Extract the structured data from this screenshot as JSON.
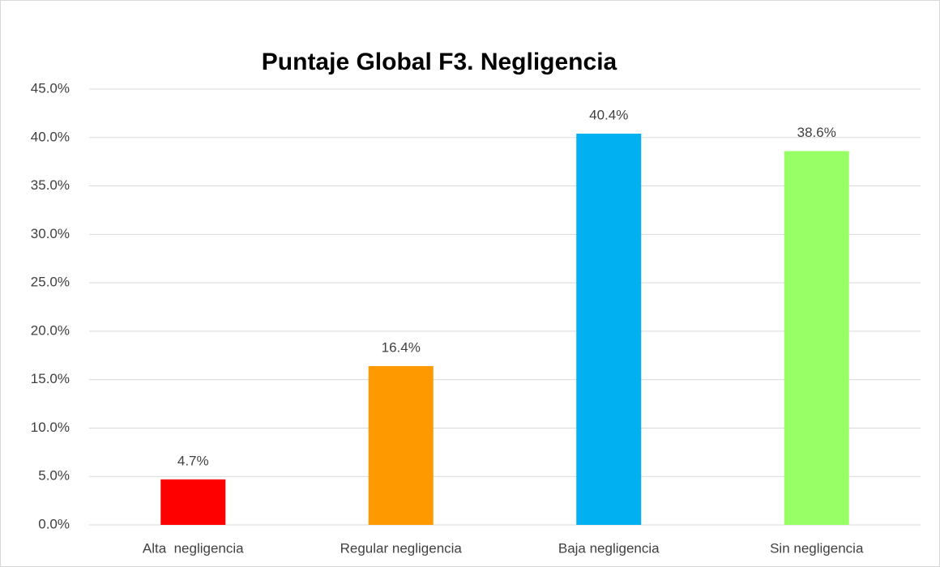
{
  "chart_data": {
    "type": "bar",
    "title": "Puntaje Global F3. Negligencia",
    "categories": [
      "Alta  negligencia",
      "Regular negligencia",
      "Baja negligencia",
      "Sin negligencia"
    ],
    "values": [
      4.7,
      16.4,
      40.4,
      38.6
    ],
    "value_labels": [
      "4.7%",
      "16.4%",
      "40.4%",
      "38.6%"
    ],
    "colors": [
      "#ff0000",
      "#ff9900",
      "#00b0f0",
      "#99ff66"
    ],
    "ylim": [
      0,
      45
    ],
    "yticks": [
      {
        "value": 0,
        "label": "0.0%"
      },
      {
        "value": 5,
        "label": "5.0%"
      },
      {
        "value": 10,
        "label": "10.0%"
      },
      {
        "value": 15,
        "label": "15.0%"
      },
      {
        "value": 20,
        "label": "20.0%"
      },
      {
        "value": 25,
        "label": "25.0%"
      },
      {
        "value": 30,
        "label": "30.0%"
      },
      {
        "value": 35,
        "label": "35.0%"
      },
      {
        "value": 40,
        "label": "40.0%"
      },
      {
        "value": 45,
        "label": "45.0%"
      }
    ],
    "grid": true
  }
}
